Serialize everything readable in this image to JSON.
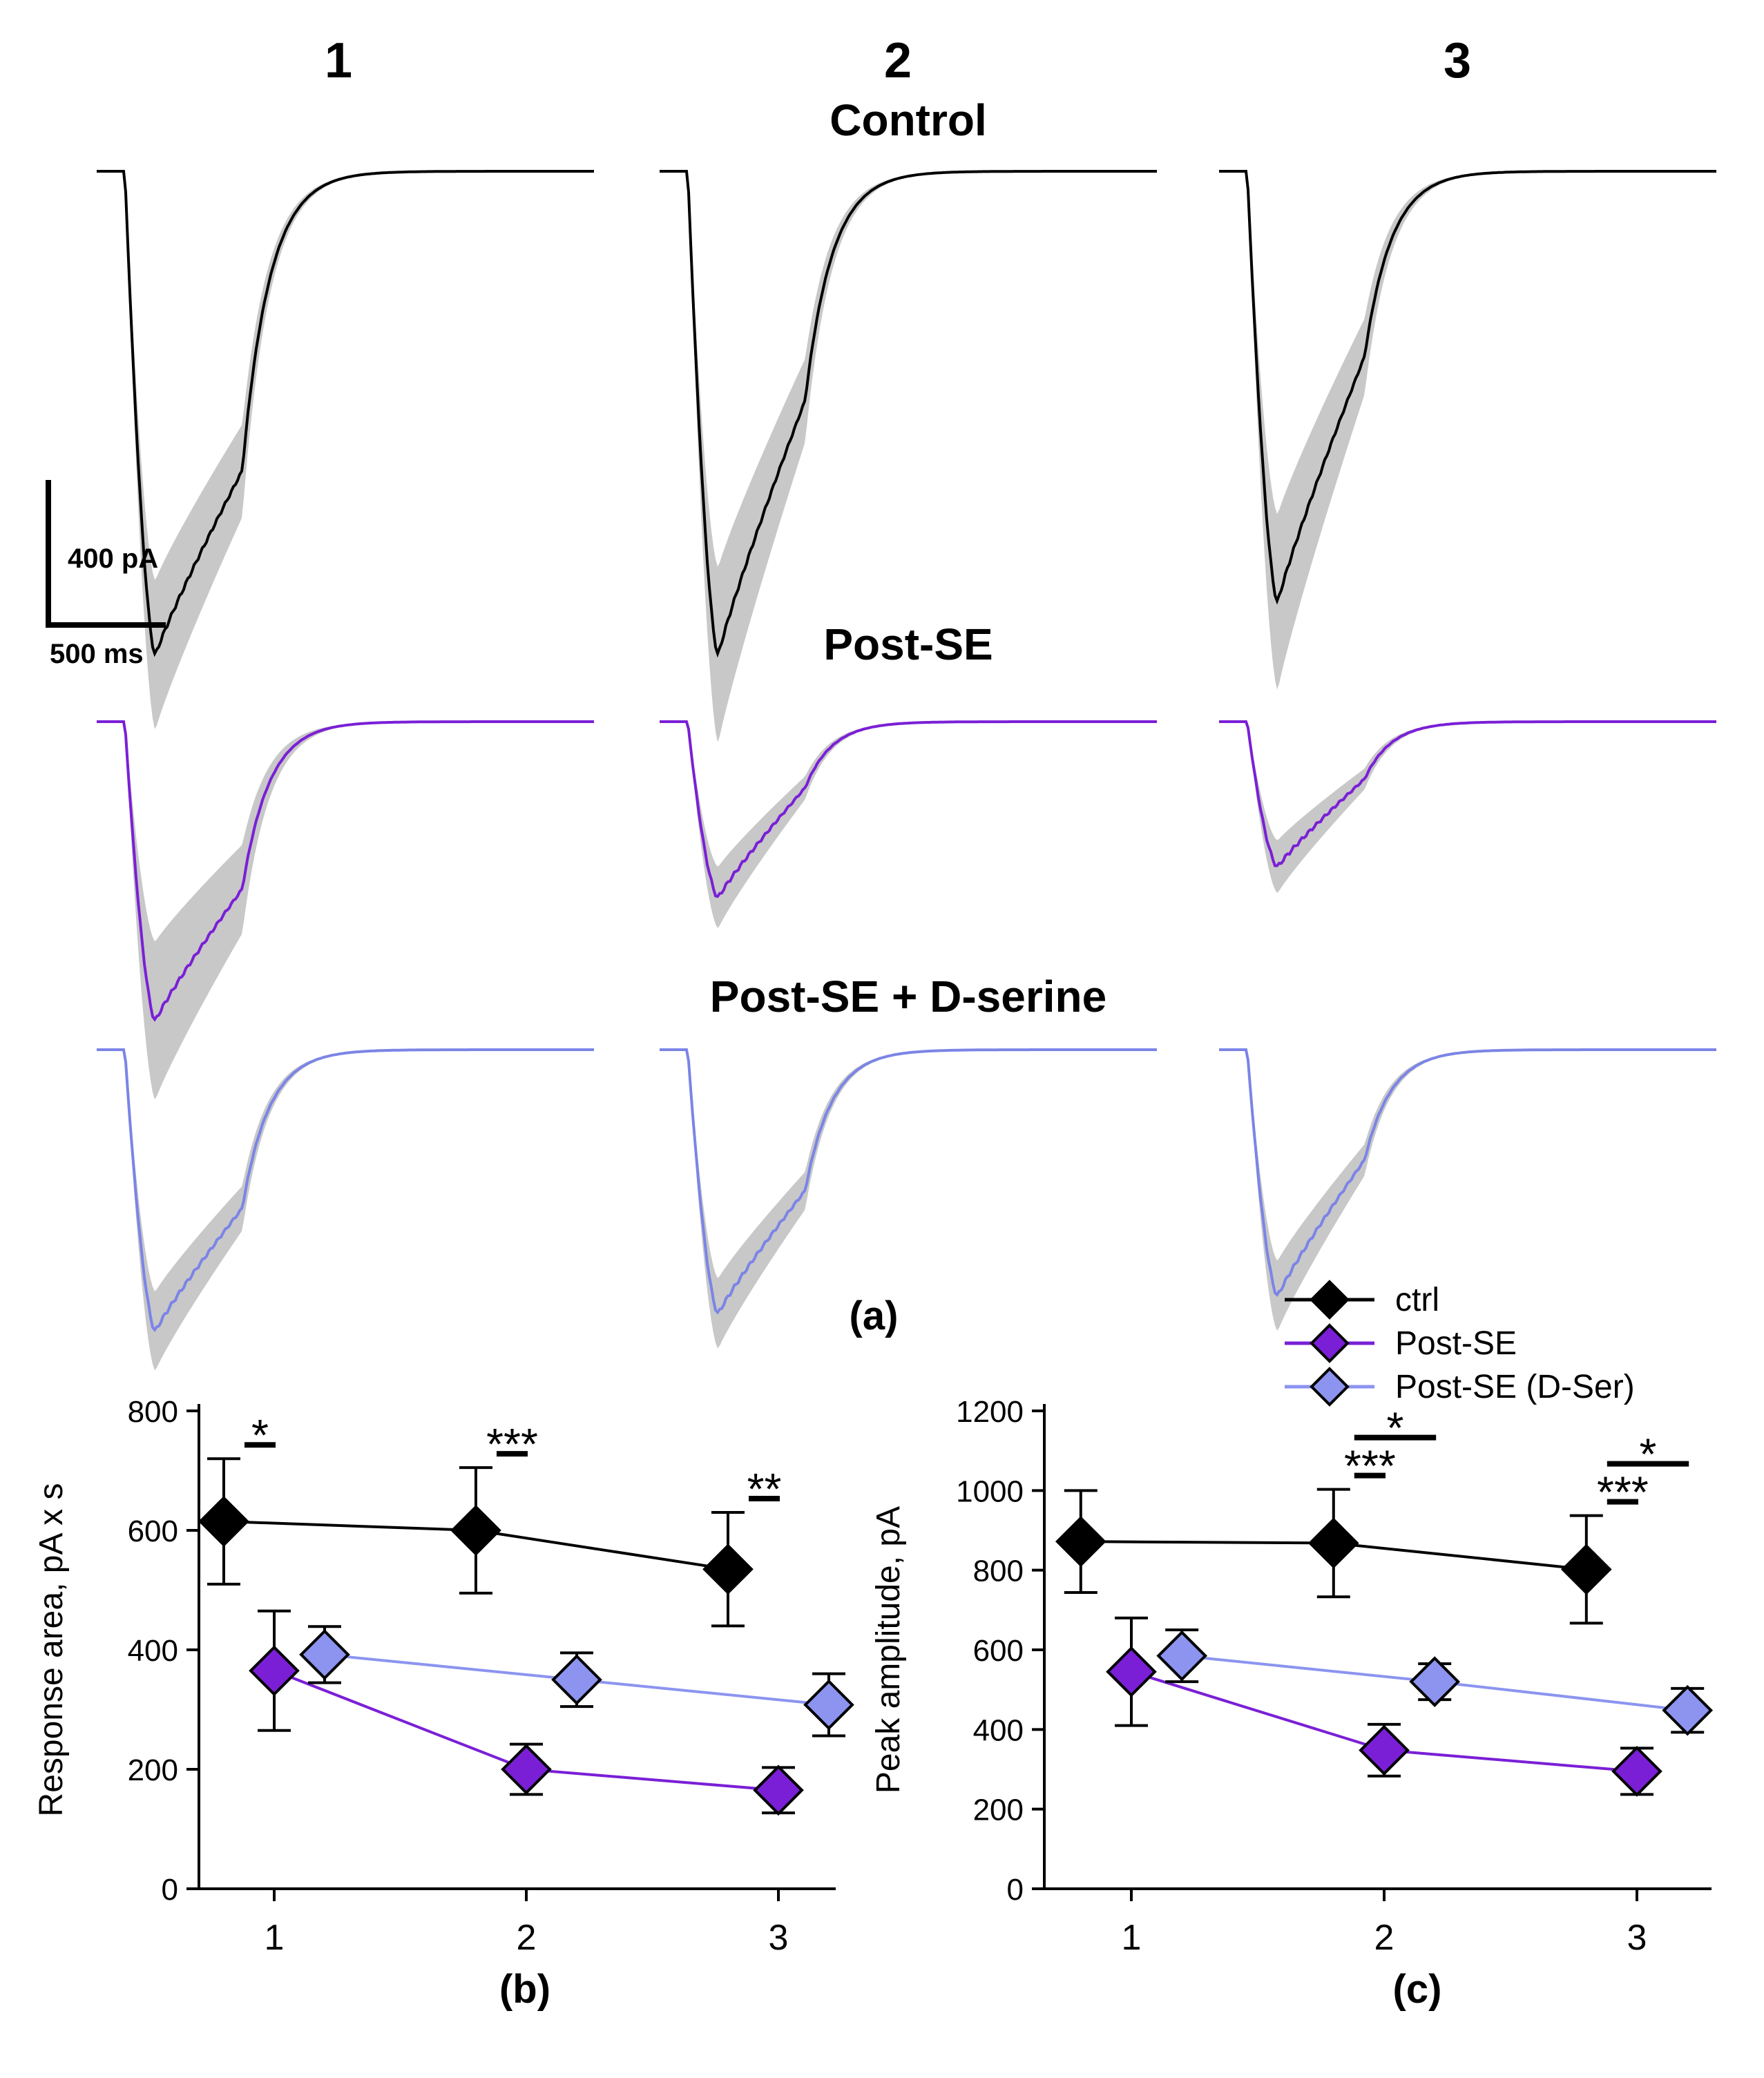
{
  "panel_a": {
    "column_headers": [
      "1",
      "2",
      "3"
    ],
    "row_titles": [
      "Control",
      "Post-SE",
      "Post-SE + D-serine"
    ],
    "scalebar": {
      "y_label": "400 pA",
      "x_label": "500 ms"
    },
    "rows": [
      {
        "name": "Control",
        "color": "#000000",
        "band_color": "#c8c8c8",
        "peaks_pA": [
          1100,
          1100,
          980
        ],
        "late_pA": [
          680,
          520,
          420
        ],
        "band_sd_pA": [
          170,
          200,
          200
        ]
      },
      {
        "name": "Post-SE",
        "color": "#7a1fd6",
        "band_color": "#c8c8c8",
        "peaks_pA": [
          680,
          400,
          330
        ],
        "late_pA": [
          380,
          150,
          130
        ],
        "band_sd_pA": [
          180,
          70,
          60
        ]
      },
      {
        "name": "Post-SE + D-serine",
        "color": "#7b84e6",
        "band_color": "#c8c8c8",
        "peaks_pA": [
          640,
          600,
          560
        ],
        "late_pA": [
          360,
          320,
          250
        ],
        "band_sd_pA": [
          90,
          80,
          80
        ]
      }
    ],
    "label": "(a)"
  },
  "legend": {
    "entries": [
      {
        "name": "ctrl",
        "color": "#000000",
        "line_color": "#000000"
      },
      {
        "name": "Post-SE",
        "color": "#7a1fd6",
        "line_color": "#7a1fd6"
      },
      {
        "name": "Post-SE (D-Ser)",
        "color": "#8c94f0",
        "line_color": "#8c94f0"
      }
    ]
  },
  "chart_data": [
    {
      "type": "line",
      "panel_label": "(b)",
      "title": "",
      "xlabel": "",
      "ylabel": "Response area, pA x s",
      "categories": [
        "1",
        "2",
        "3"
      ],
      "ylim": [
        0,
        800
      ],
      "yticks": [
        0,
        200,
        400,
        600,
        800
      ],
      "series": [
        {
          "name": "ctrl",
          "values": [
            615,
            600,
            535
          ],
          "errors": [
            105,
            105,
            95
          ],
          "offset": -0.2
        },
        {
          "name": "Post-SE",
          "values": [
            365,
            200,
            165
          ],
          "errors": [
            100,
            42,
            38
          ],
          "offset": 0
        },
        {
          "name": "Post-SE (D-Ser)",
          "values": [
            392,
            350,
            308
          ],
          "errors": [
            47,
            45,
            52
          ],
          "offset": 0.2
        }
      ],
      "significance": [
        {
          "category": "1",
          "label": "*",
          "from": "ctrl",
          "to": "Post-SE",
          "level": 0
        },
        {
          "category": "2",
          "label": "***",
          "from": "ctrl",
          "to": "Post-SE",
          "level": 0
        },
        {
          "category": "3",
          "label": "**",
          "from": "ctrl",
          "to": "Post-SE",
          "level": 0
        }
      ]
    },
    {
      "type": "line",
      "panel_label": "(c)",
      "title": "",
      "xlabel": "",
      "ylabel": "Peak amplitude, pA",
      "categories": [
        "1",
        "2",
        "3"
      ],
      "ylim": [
        0,
        1200
      ],
      "yticks": [
        0,
        200,
        400,
        600,
        800,
        1000,
        1200
      ],
      "series": [
        {
          "name": "ctrl",
          "values": [
            872,
            868,
            802
          ],
          "errors": [
            128,
            135,
            135
          ],
          "offset": -0.2
        },
        {
          "name": "Post-SE",
          "values": [
            545,
            348,
            295
          ],
          "errors": [
            135,
            65,
            58
          ],
          "offset": 0
        },
        {
          "name": "Post-SE (D-Ser)",
          "values": [
            585,
            520,
            448
          ],
          "errors": [
            65,
            45,
            55
          ],
          "offset": 0.2
        }
      ],
      "significance": [
        {
          "category": "2",
          "label": "***",
          "from": "ctrl",
          "to": "Post-SE",
          "level": 0
        },
        {
          "category": "2",
          "label": "*",
          "from": "ctrl",
          "to": "Post-SE (D-Ser)",
          "level": 1
        },
        {
          "category": "3",
          "label": "***",
          "from": "ctrl",
          "to": "Post-SE",
          "level": 0
        },
        {
          "category": "3",
          "label": "*",
          "from": "ctrl",
          "to": "Post-SE (D-Ser)",
          "level": 1
        }
      ]
    }
  ]
}
